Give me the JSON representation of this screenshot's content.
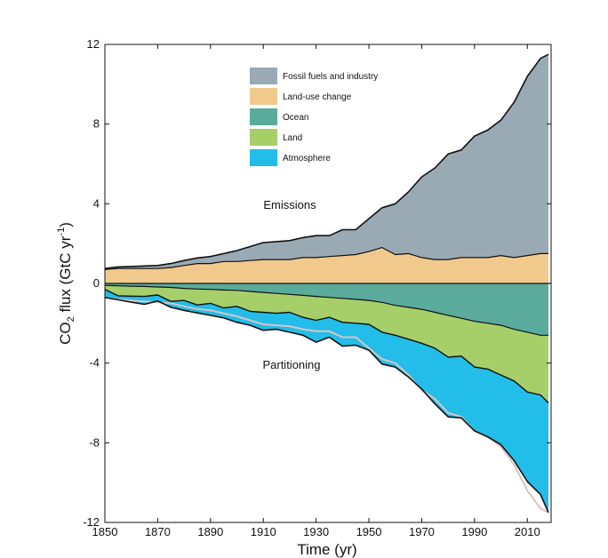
{
  "chart_data": {
    "type": "area",
    "xlabel": "Time (yr)",
    "ylabel": "CO2 flux (GtC yr-1)",
    "ylabel_parts": {
      "base": "CO",
      "sub": "2",
      "mid": " flux (GtC yr",
      "sup": "-1",
      "end": ")"
    },
    "xlim": [
      1850,
      2019
    ],
    "ylim": [
      -12,
      12
    ],
    "xticks": [
      1850,
      1870,
      1890,
      1910,
      1930,
      1950,
      1970,
      1990,
      2010
    ],
    "yticks": [
      12,
      8,
      4,
      0,
      -4,
      -8,
      -12
    ],
    "grid": false,
    "legend_position": "top-center",
    "annotations": [
      "Emissions",
      "Partitioning"
    ],
    "x": [
      1850,
      1855,
      1860,
      1865,
      1870,
      1875,
      1880,
      1885,
      1890,
      1895,
      1900,
      1905,
      1910,
      1915,
      1920,
      1925,
      1930,
      1935,
      1940,
      1945,
      1950,
      1955,
      1960,
      1965,
      1970,
      1975,
      1980,
      1985,
      1990,
      1995,
      2000,
      2005,
      2010,
      2015,
      2018
    ],
    "series": [
      {
        "name": "Fossil fuels and industry",
        "color": "#9aaab4",
        "values": [
          0.05,
          0.08,
          0.1,
          0.13,
          0.15,
          0.2,
          0.25,
          0.28,
          0.35,
          0.4,
          0.55,
          0.7,
          0.85,
          0.9,
          0.95,
          1.0,
          1.1,
          1.05,
          1.3,
          1.25,
          1.65,
          2.0,
          2.55,
          3.1,
          4.05,
          4.6,
          5.3,
          5.4,
          6.1,
          6.4,
          6.8,
          7.8,
          9.0,
          9.8,
          10.0
        ]
      },
      {
        "name": "Land-use change",
        "color": "#f2c98c",
        "values": [
          0.7,
          0.75,
          0.75,
          0.75,
          0.75,
          0.8,
          0.9,
          1.0,
          1.0,
          1.1,
          1.1,
          1.15,
          1.2,
          1.2,
          1.2,
          1.3,
          1.3,
          1.35,
          1.4,
          1.45,
          1.6,
          1.8,
          1.45,
          1.5,
          1.3,
          1.2,
          1.2,
          1.3,
          1.3,
          1.3,
          1.4,
          1.3,
          1.4,
          1.5,
          1.5
        ]
      },
      {
        "name": "Ocean",
        "color": "#5aab9c",
        "values": [
          -0.1,
          -0.12,
          -0.14,
          -0.15,
          -0.18,
          -0.2,
          -0.25,
          -0.28,
          -0.3,
          -0.33,
          -0.35,
          -0.4,
          -0.45,
          -0.5,
          -0.55,
          -0.6,
          -0.65,
          -0.7,
          -0.75,
          -0.8,
          -0.85,
          -0.95,
          -1.1,
          -1.2,
          -1.3,
          -1.45,
          -1.6,
          -1.75,
          -1.9,
          -2.0,
          -2.1,
          -2.3,
          -2.45,
          -2.6,
          -2.6
        ]
      },
      {
        "name": "Land",
        "color": "#a6cf6a",
        "values": [
          -0.2,
          -0.5,
          -0.5,
          -0.5,
          -0.4,
          -0.7,
          -0.6,
          -0.8,
          -0.7,
          -0.9,
          -0.8,
          -1.0,
          -1.0,
          -1.0,
          -0.9,
          -1.1,
          -1.2,
          -1.0,
          -1.2,
          -1.2,
          -1.2,
          -1.5,
          -1.5,
          -1.6,
          -1.7,
          -1.8,
          -2.1,
          -1.9,
          -2.3,
          -2.3,
          -2.5,
          -2.6,
          -3.0,
          -3.0,
          -3.4
        ]
      },
      {
        "name": "Atmosphere",
        "color": "#22bde8",
        "values": [
          -0.4,
          -0.2,
          -0.3,
          -0.4,
          -0.3,
          -0.3,
          -0.5,
          -0.4,
          -0.6,
          -0.5,
          -0.8,
          -0.7,
          -0.9,
          -0.8,
          -1.0,
          -0.9,
          -1.1,
          -1.0,
          -1.2,
          -1.1,
          -1.3,
          -1.6,
          -1.6,
          -1.9,
          -2.3,
          -2.8,
          -3.0,
          -3.1,
          -3.2,
          -3.4,
          -3.5,
          -4.0,
          -4.5,
          -5.0,
          -5.5
        ]
      }
    ],
    "imbalance_line": {
      "color": "#d8c4c4",
      "values": [
        -0.7,
        -0.8,
        -0.85,
        -0.9,
        -0.95,
        -1.0,
        -1.15,
        -1.28,
        -1.35,
        -1.5,
        -1.65,
        -1.85,
        -2.05,
        -2.1,
        -2.15,
        -2.3,
        -2.4,
        -2.4,
        -2.7,
        -2.7,
        -3.25,
        -3.8,
        -4.0,
        -4.6,
        -5.35,
        -5.8,
        -6.5,
        -6.7,
        -7.4,
        -7.7,
        -8.2,
        -9.1,
        -10.4,
        -11.3,
        -11.5
      ]
    }
  }
}
